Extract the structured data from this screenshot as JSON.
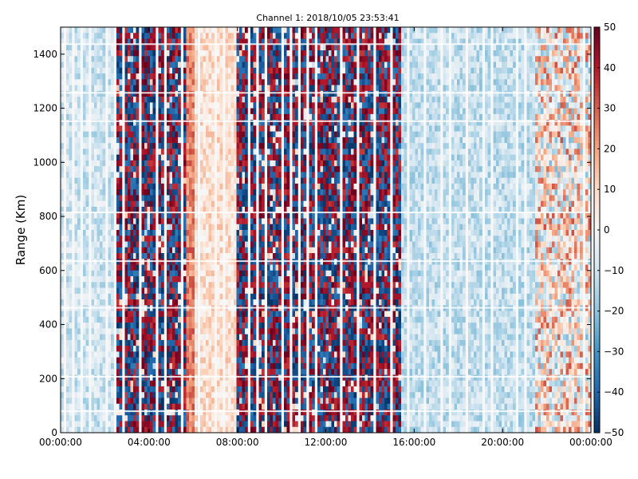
{
  "chart_data": {
    "type": "heatmap",
    "title": "Channel 1: 2018/10/05 23:53:41",
    "xlabel": "",
    "ylabel": "Range (Km)",
    "x_tick_labels": [
      "00:00:00",
      "04:00:00",
      "08:00:00",
      "12:00:00",
      "16:00:00",
      "20:00:00",
      "00:00:00"
    ],
    "x_range_hours": [
      0,
      24
    ],
    "ylim": [
      0,
      1500
    ],
    "y_ticks": [
      0,
      200,
      400,
      600,
      800,
      1000,
      1200,
      1400
    ],
    "colorbar": {
      "range": [
        -50,
        50
      ],
      "ticks": [
        50,
        40,
        30,
        20,
        10,
        0,
        -10,
        -20,
        -30,
        -40,
        -50
      ],
      "tick_labels": [
        "50",
        "40",
        "30",
        "20",
        "10",
        "0",
        "−10",
        "−20",
        "−30",
        "−40",
        "−50"
      ],
      "colormap": "RdBu_r",
      "colors": [
        "#053061",
        "#2166ac",
        "#4393c3",
        "#92c5de",
        "#d1e5f0",
        "#f7f7f7",
        "#fddbc7",
        "#f4a582",
        "#d6604d",
        "#b2182b",
        "#67001f"
      ]
    },
    "regions": [
      {
        "hours": [
          0,
          2.4
        ],
        "description": "mostly light blue/white",
        "mean": -10
      },
      {
        "hours": [
          2.4,
          5.8
        ],
        "description": "saturated noise (dark red/dark blue)",
        "mean": 0
      },
      {
        "hours": [
          5.8,
          6.1
        ],
        "description": "salmon band",
        "mean": 25
      },
      {
        "hours": [
          6.1,
          8.0
        ],
        "description": "light pink band",
        "mean": 8
      },
      {
        "hours": [
          8.0,
          15.5
        ],
        "description": "saturated noise",
        "mean": 0
      },
      {
        "hours": [
          15.5,
          21.5
        ],
        "description": "light blue",
        "mean": -12
      },
      {
        "hours": [
          21.5,
          24
        ],
        "description": "mixed red/blue",
        "mean": 5
      }
    ],
    "grid": false,
    "legend": "none"
  }
}
